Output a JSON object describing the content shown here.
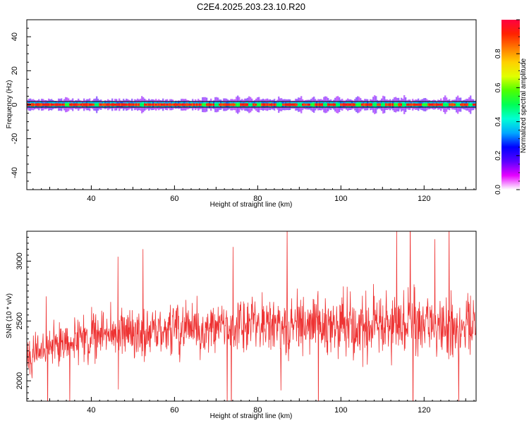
{
  "figure_title": "C2E4.2025.203.23.10.R20",
  "chart_data": [
    {
      "type": "heatmap",
      "name": "spectrogram",
      "xlabel": "Height of straight line (km)",
      "ylabel": "Frequency (Hz)",
      "xlim": [
        24.5,
        132.5
      ],
      "ylim": [
        -50,
        50
      ],
      "x_ticks": [
        40,
        60,
        80,
        100,
        120
      ],
      "y_ticks": [
        -40,
        -20,
        0,
        20,
        40
      ],
      "grid": false,
      "colorbar": {
        "label": "Normalized spectral amplitude",
        "range": [
          0,
          1
        ],
        "ticks": [
          0.0,
          0.2,
          0.4,
          0.6,
          0.8
        ],
        "colors": [
          "#ffffff",
          "#e600ff",
          "#5a00ff",
          "#0000ff",
          "#00a8ff",
          "#00ffd5",
          "#00ff55",
          "#4dff00",
          "#e0ff00",
          "#ffd000",
          "#ff7a00",
          "#ff2200",
          "#ff0040"
        ]
      },
      "band": {
        "freq": 0,
        "peak_amplitude": 0.95,
        "spread_hz": 2
      },
      "hotspots": [
        {
          "x": 34,
          "value": 0.55
        },
        {
          "x": 41,
          "value": 0.5
        },
        {
          "x": 52,
          "value": 0.5
        },
        {
          "x": 67,
          "value": 0.55
        },
        {
          "x": 70,
          "value": 0.5
        },
        {
          "x": 75,
          "value": 0.55
        },
        {
          "x": 78,
          "value": 0.5
        },
        {
          "x": 80,
          "value": 0.55
        },
        {
          "x": 85,
          "value": 0.5
        },
        {
          "x": 90,
          "value": 0.5
        },
        {
          "x": 93,
          "value": 0.55
        },
        {
          "x": 96,
          "value": 0.5
        },
        {
          "x": 99,
          "value": 0.5
        },
        {
          "x": 104,
          "value": 0.55
        },
        {
          "x": 108,
          "value": 0.5
        },
        {
          "x": 110,
          "value": 0.5
        },
        {
          "x": 113,
          "value": 0.55
        },
        {
          "x": 115,
          "value": 0.5
        },
        {
          "x": 120,
          "value": 0.55
        },
        {
          "x": 125,
          "value": 0.5
        },
        {
          "x": 128,
          "value": 0.5
        },
        {
          "x": 131,
          "value": 0.5
        }
      ]
    },
    {
      "type": "line",
      "name": "snr",
      "xlabel": "Height of straight line (km)",
      "ylabel": "SNR (10 * v/v)",
      "xlim": [
        24.5,
        132.5
      ],
      "ylim": [
        1830,
        3250
      ],
      "x_ticks": [
        40,
        60,
        80,
        100,
        120
      ],
      "y_ticks": [
        2000,
        2500,
        3000
      ],
      "grid": false,
      "color": "#ee3333",
      "x": [
        25,
        30,
        35,
        40,
        45,
        50,
        55,
        60,
        65,
        70,
        75,
        80,
        85,
        90,
        95,
        100,
        105,
        110,
        115,
        120,
        125,
        130,
        132
      ],
      "y": [
        2230,
        2300,
        2330,
        2370,
        2390,
        2410,
        2420,
        2430,
        2440,
        2440,
        2450,
        2460,
        2470,
        2470,
        2480,
        2490,
        2480,
        2480,
        2480,
        2470,
        2470,
        2460,
        2450
      ],
      "spread": [
        250,
        260,
        280,
        300,
        320,
        330,
        330,
        330,
        340,
        340,
        350,
        360,
        360,
        370,
        380,
        400,
        400,
        420,
        420,
        400,
        400,
        380,
        370
      ],
      "samples_per_km": 12
    }
  ]
}
